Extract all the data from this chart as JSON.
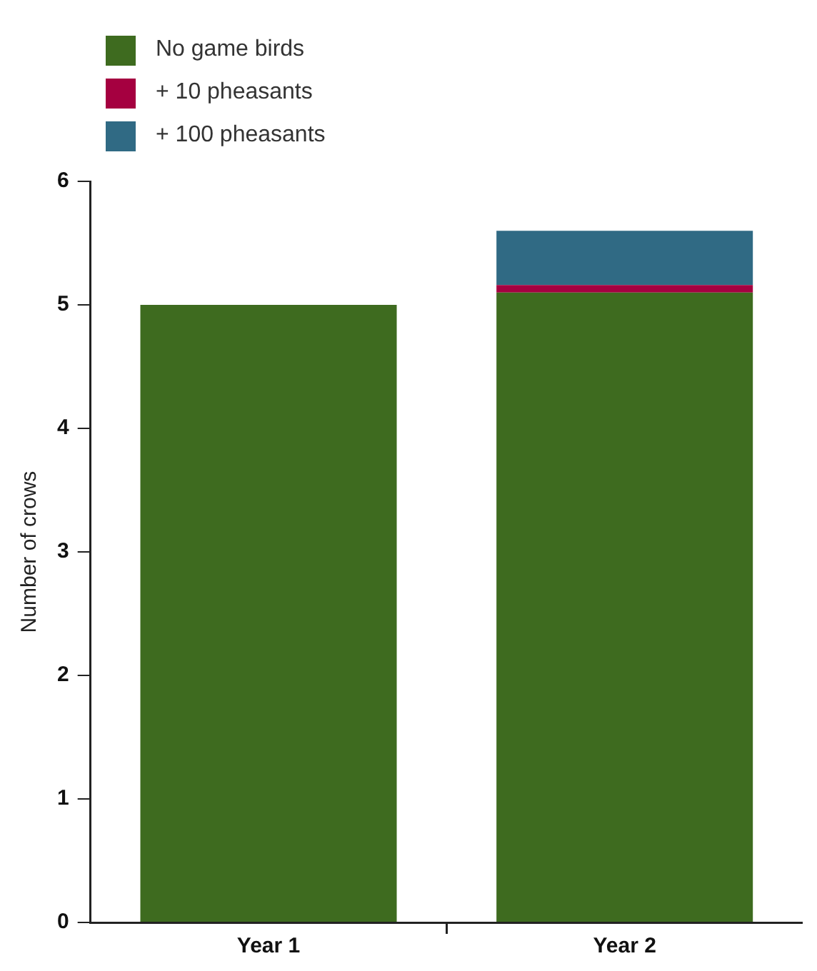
{
  "chart_data": {
    "type": "bar",
    "stacked": true,
    "ylabel": "Number of crows",
    "categories": [
      "Year 1",
      "Year 2"
    ],
    "series": [
      {
        "name": "No game birds",
        "color": "#3e6b1f",
        "values": [
          5.0,
          5.1
        ]
      },
      {
        "name": "+ 10 pheasants",
        "color": "#a50040",
        "values": [
          null,
          0.06
        ]
      },
      {
        "name": "+ 100 pheasants",
        "color": "#306a84",
        "values": [
          null,
          0.44
        ]
      }
    ],
    "ylim": [
      0,
      6
    ],
    "yticks": [
      0,
      1,
      2,
      3,
      4,
      5,
      6
    ],
    "grid": false,
    "legend": "top left"
  }
}
